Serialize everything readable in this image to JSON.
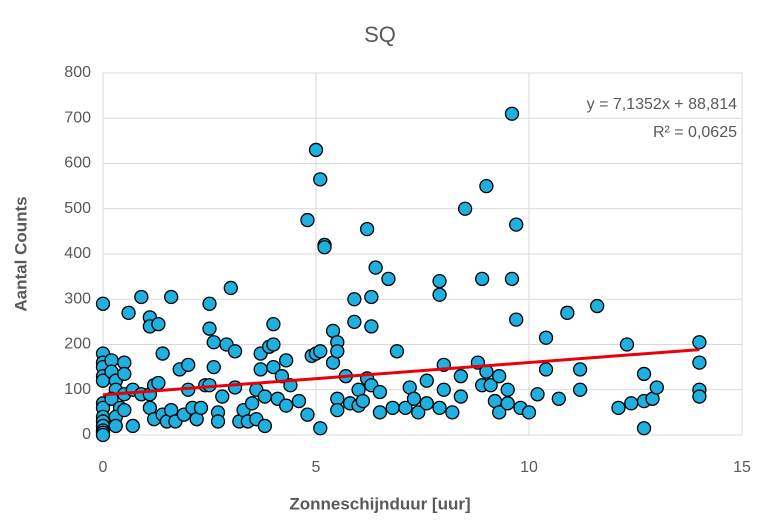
{
  "chart_data": {
    "type": "scatter",
    "title": "SQ",
    "x_label": "Zonneschijnduur [uur]",
    "y_label": "Aantal Counts",
    "color": "#1fb0e0",
    "x": [
      0,
      0,
      0,
      0,
      0,
      0,
      0,
      0,
      0,
      0,
      0,
      0,
      0,
      0,
      0.2,
      0.2,
      0.3,
      0.3,
      0.2,
      0.4,
      0.3,
      0.3,
      0.5,
      0.5,
      0.5,
      0.5,
      0.6,
      0.7,
      0.7,
      0.9,
      0.9,
      1.1,
      1.1,
      1.1,
      1.1,
      1.2,
      1.2,
      1.3,
      1.3,
      1.4,
      1.4,
      1.5,
      1.6,
      1.6,
      1.7,
      1.8,
      1.9,
      2.0,
      2.0,
      2.1,
      2.2,
      2.3,
      2.4,
      2.5,
      2.5,
      2.5,
      2.6,
      2.6,
      2.7,
      2.7,
      2.8,
      2.9,
      3.0,
      3.1,
      3.1,
      3.2,
      3.3,
      3.4,
      3.5,
      3.6,
      3.6,
      3.7,
      3.7,
      3.8,
      3.8,
      3.9,
      4.0,
      4.0,
      4.0,
      4.1,
      4.2,
      4.3,
      4.3,
      4.4,
      4.6,
      4.8,
      4.8,
      4.9,
      5.0,
      5.0,
      5.1,
      5.1,
      5.1,
      5.2,
      5.2,
      5.4,
      5.4,
      5.5,
      5.5,
      5.5,
      5.5,
      5.7,
      5.8,
      5.9,
      5.9,
      6.0,
      6.0,
      6.1,
      6.2,
      6.2,
      6.3,
      6.3,
      6.3,
      6.4,
      6.5,
      6.5,
      6.7,
      6.8,
      6.9,
      7.1,
      7.2,
      7.3,
      7.4,
      7.6,
      7.6,
      7.9,
      7.9,
      7.9,
      8.0,
      8.0,
      8.2,
      8.4,
      8.4,
      8.5,
      8.8,
      8.9,
      8.9,
      9.0,
      9.0,
      9.1,
      9.2,
      9.3,
      9.3,
      9.5,
      9.5,
      9.6,
      9.6,
      9.7,
      9.7,
      9.8,
      10.0,
      10.2,
      10.4,
      10.4,
      10.7,
      10.9,
      11.2,
      11.2,
      11.6,
      12.1,
      12.3,
      12.4,
      12.7,
      12.7,
      12.7,
      12.9,
      13.0,
      14.0,
      14.0,
      14.0,
      14.0
    ],
    "values": [
      290,
      180,
      160,
      150,
      130,
      120,
      70,
      60,
      40,
      30,
      20,
      10,
      5,
      0,
      165,
      140,
      120,
      100,
      80,
      60,
      40,
      20,
      160,
      135,
      90,
      55,
      270,
      100,
      20,
      305,
      90,
      260,
      240,
      90,
      60,
      35,
      110,
      115,
      245,
      180,
      45,
      30,
      305,
      55,
      30,
      145,
      45,
      155,
      100,
      60,
      35,
      60,
      110,
      290,
      235,
      110,
      205,
      150,
      50,
      30,
      85,
      200,
      325,
      185,
      105,
      30,
      55,
      30,
      70,
      35,
      100,
      180,
      145,
      20,
      85,
      195,
      245,
      200,
      150,
      80,
      130,
      65,
      165,
      110,
      75,
      475,
      45,
      175,
      630,
      180,
      565,
      185,
      15,
      420,
      415,
      230,
      160,
      205,
      185,
      80,
      55,
      130,
      70,
      300,
      250,
      100,
      65,
      75,
      455,
      125,
      305,
      240,
      110,
      370,
      95,
      50,
      345,
      60,
      185,
      60,
      105,
      80,
      50,
      120,
      70,
      340,
      310,
      60,
      155,
      100,
      50,
      130,
      85,
      500,
      160,
      345,
      110,
      550,
      140,
      110,
      75,
      130,
      50,
      100,
      70,
      345,
      710,
      465,
      255,
      60,
      50,
      90,
      215,
      145,
      80,
      270,
      145,
      100,
      285,
      60,
      200,
      70,
      75,
      135,
      15,
      80,
      105,
      205,
      160,
      100,
      85
    ],
    "trendline": {
      "color": "#e8000b",
      "x": [
        0,
        14
      ],
      "values": [
        88.814,
        188.7068
      ]
    },
    "annotations": [
      "y = 7,1352x + 88,814",
      "R² = 0,0625"
    ],
    "xlim": [
      0,
      15
    ],
    "xticks": [
      0,
      5,
      10,
      15
    ],
    "ylim": [
      0,
      800
    ],
    "yticks": [
      0,
      100,
      200,
      300,
      400,
      500,
      600,
      700,
      800
    ],
    "grid": true
  }
}
